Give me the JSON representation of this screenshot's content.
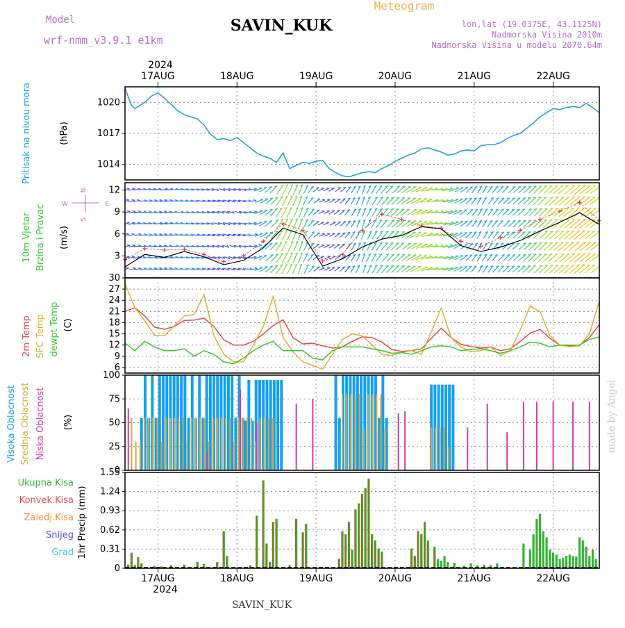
{
  "header": {
    "model_label": "Model",
    "model_value": "wrf-nmm_v3.9.1  e1km",
    "station": "SAVIN_KUK",
    "product": "Meteogram",
    "lonlat": "lon,lat (19.0375E, 43.1125N)",
    "altitude": "Nadmorska Visina 2010m",
    "model_altitude": "Nadmorska Visina u modelu 2070.64m"
  },
  "footer": {
    "station": "SAVIN_KUK",
    "credit": "made by Angel"
  },
  "axis": {
    "year": "2024",
    "dates": [
      "17AUG",
      "18AUG",
      "19AUG",
      "20AUG",
      "21AUG",
      "22AUG"
    ]
  },
  "colors": {
    "pressure": "#1ea0e6",
    "t2m": "#e64646",
    "sfc": "#e6aa32",
    "dew": "#32c832",
    "high_cloud": "#14a0f0",
    "mid_cloud": "#d2aa3c",
    "low_cloud": "#c83cb4",
    "total_precip": "#32b432",
    "conv_precip": "#e64646",
    "freezing_precip": "#f08c32",
    "snow": "#5050e6",
    "graupel": "#32c8c8",
    "title_purple": "#b46ec8",
    "title_orange": "#e6b450"
  },
  "chart_data": [
    {
      "type": "line",
      "panel": "pressure",
      "ylabel_lines": [
        "Pritisak na nivou mora",
        "(hPa)"
      ],
      "yticks": [
        1014,
        1017,
        1020
      ],
      "ylim": [
        1012.5,
        1021.5
      ],
      "xlim_hours": [
        0,
        144
      ],
      "series": [
        {
          "name": "Pritisak na nivou mora",
          "x_hours": [
            0,
            1,
            2,
            3,
            4,
            6,
            8,
            10,
            12,
            14,
            16,
            18,
            20,
            22,
            24,
            26,
            28,
            30,
            32,
            34,
            36,
            38,
            40,
            42,
            44,
            46,
            48,
            50,
            52,
            54,
            56,
            58,
            60,
            62,
            64,
            66,
            68,
            70,
            72,
            74,
            76,
            78,
            80,
            82,
            84,
            86,
            88,
            90,
            92,
            94,
            96,
            98,
            100,
            102,
            104,
            106,
            108,
            110,
            112,
            114,
            116,
            118,
            120,
            122,
            124,
            126,
            128,
            130,
            132,
            134,
            136,
            138,
            140,
            142,
            144
          ],
          "values": [
            1021.4,
            1020.5,
            1019.7,
            1019.4,
            1019.6,
            1020.0,
            1020.6,
            1020.9,
            1020.4,
            1019.8,
            1019.2,
            1018.8,
            1018.6,
            1018.4,
            1017.8,
            1016.9,
            1016.4,
            1016.5,
            1016.3,
            1016.6,
            1016.1,
            1015.6,
            1015.1,
            1014.8,
            1014.6,
            1014.2,
            1015.1,
            1013.6,
            1013.9,
            1014.2,
            1014.1,
            1014.3,
            1014.4,
            1013.6,
            1013.2,
            1012.9,
            1012.8,
            1013.0,
            1013.2,
            1013.3,
            1013.2,
            1013.6,
            1013.9,
            1014.3,
            1014.6,
            1014.9,
            1015.1,
            1015.5,
            1015.6,
            1015.4,
            1015.2,
            1014.9,
            1015.0,
            1015.3,
            1015.4,
            1015.3,
            1015.8,
            1015.9,
            1015.9,
            1016.1,
            1016.5,
            1016.8,
            1017.0,
            1017.5,
            1018.0,
            1018.6,
            1019.0,
            1019.4,
            1019.3,
            1019.5,
            1019.6,
            1019.5,
            1019.9,
            1019.5,
            1019.0
          ]
        }
      ]
    },
    {
      "type": "wind",
      "panel": "wind",
      "ylabel_lines": [
        "10m Vjetar",
        "Brzina i Pravac",
        "(m/s)"
      ],
      "compass": {
        "n": "N",
        "s": "S",
        "w": "W",
        "e": "E"
      },
      "yticks": [
        3,
        6,
        9,
        12
      ],
      "ylim": [
        0,
        13
      ],
      "xlim_hours": [
        0,
        144
      ],
      "x_hours": [
        0,
        6,
        12,
        18,
        24,
        30,
        36,
        42,
        48,
        54,
        60,
        66,
        72,
        78,
        84,
        90,
        96,
        102,
        108,
        114,
        120,
        126,
        132,
        138,
        144
      ],
      "speed": [
        1.5,
        3.2,
        2.8,
        3.6,
        2.9,
        1.8,
        2.4,
        4.1,
        6.8,
        5.9,
        1.6,
        2.6,
        4.2,
        5.3,
        5.8,
        7.0,
        6.7,
        4.4,
        3.6,
        4.2,
        5.1,
        6.4,
        7.6,
        8.9,
        7.3
      ],
      "gust": [
        2.5,
        4.0,
        3.8,
        3.9,
        3.2,
        2.2,
        3.0,
        5.0,
        7.4,
        6.5,
        2.3,
        3.2,
        6.5,
        8.7,
        8.0,
        7.1,
        6.8,
        5.0,
        4.3,
        5.5,
        6.5,
        8.0,
        9.1,
        10.3,
        7.8
      ],
      "direction_deg": [
        250,
        270,
        260,
        275,
        280,
        290,
        285,
        240,
        210,
        200,
        250,
        230,
        200,
        220,
        230,
        250,
        270,
        240,
        210,
        225,
        230,
        225,
        230,
        230,
        235
      ]
    },
    {
      "type": "line",
      "panel": "temperature",
      "ylabel_lines": [
        "2m Temp",
        "SFC Temp",
        "dewpt Temp",
        "(C)"
      ],
      "yticks": [
        6,
        9,
        12,
        15,
        18,
        21,
        24,
        27,
        30
      ],
      "ylim": [
        4.5,
        30
      ],
      "xlim_hours": [
        0,
        144
      ],
      "x_hours": [
        0,
        3,
        6,
        9,
        12,
        15,
        18,
        21,
        24,
        27,
        30,
        33,
        36,
        39,
        42,
        45,
        48,
        51,
        54,
        57,
        60,
        63,
        66,
        69,
        72,
        75,
        78,
        81,
        84,
        87,
        90,
        93,
        96,
        99,
        102,
        105,
        108,
        111,
        114,
        117,
        120,
        123,
        126,
        129,
        132,
        135,
        138,
        141,
        144
      ],
      "series": [
        {
          "name": "2m Temp",
          "values": [
            21.0,
            22.0,
            19.8,
            16.8,
            16.2,
            17.0,
            18.6,
            18.7,
            19.2,
            17.0,
            13.4,
            12.0,
            12.0,
            13.0,
            15.0,
            17.2,
            18.8,
            14.0,
            12.3,
            12.5,
            11.8,
            11.2,
            11.5,
            13.0,
            14.2,
            14.0,
            12.8,
            10.8,
            10.3,
            10.5,
            11.0,
            13.8,
            16.5,
            14.0,
            12.2,
            11.6,
            11.2,
            11.5,
            10.5,
            11.0,
            13.0,
            15.2,
            16.2,
            13.8,
            12.0,
            11.8,
            12.0,
            14.0,
            17.5
          ]
        },
        {
          "name": "SFC Temp",
          "values": [
            28.5,
            22.0,
            18.5,
            14.5,
            14.5,
            17.2,
            19.8,
            20.2,
            25.5,
            14.5,
            9.5,
            7.5,
            7.5,
            12.0,
            17.0,
            25.0,
            14.0,
            10.2,
            7.5,
            6.5,
            5.5,
            9.5,
            13.5,
            15.0,
            14.5,
            12.0,
            9.5,
            9.2,
            10.0,
            10.5,
            9.5,
            15.5,
            22.0,
            14.0,
            11.5,
            10.2,
            10.5,
            11.5,
            9.2,
            10.5,
            16.0,
            22.5,
            21.0,
            14.5,
            12.0,
            11.5,
            11.8,
            15.0,
            23.8
          ]
        },
        {
          "name": "dewpt Temp",
          "values": [
            12.5,
            10.5,
            13.0,
            11.5,
            10.5,
            10.5,
            11.0,
            9.0,
            10.5,
            9.5,
            7.5,
            7.0,
            8.5,
            10.5,
            12.0,
            13.0,
            10.5,
            10.5,
            10.5,
            8.5,
            8.0,
            10.5,
            11.5,
            11.5,
            11.5,
            11.0,
            10.5,
            9.8,
            10.0,
            9.5,
            10.5,
            11.5,
            11.8,
            11.5,
            10.5,
            10.8,
            11.0,
            10.5,
            9.8,
            10.5,
            11.5,
            12.8,
            12.5,
            11.5,
            12.0,
            12.0,
            12.0,
            13.5,
            14.2
          ]
        }
      ]
    },
    {
      "type": "bar",
      "panel": "cloud",
      "ylabel_lines": [
        "Visoka Oblacnost",
        "Srednja Oblacnost",
        "Niska Oblacnost",
        "(%)"
      ],
      "yticks": [
        0,
        25,
        50,
        75,
        100
      ],
      "ylim": [
        0,
        100
      ],
      "xlim_hours": [
        0,
        144
      ],
      "series": [
        {
          "name": "Visoka Oblacnost",
          "segments": [
            {
              "from": 5,
              "to": 36,
              "value": 100
            },
            {
              "from": 36.5,
              "to": 48,
              "value": 95
            },
            {
              "from": 64,
              "to": 80,
              "value": 100
            },
            {
              "from": 93,
              "to": 100,
              "value": 90
            }
          ]
        },
        {
          "name": "Srednja Oblacnost",
          "segments": [
            {
              "from": 2,
              "to": 46,
              "value": 55
            },
            {
              "from": 66,
              "to": 80,
              "value": 80
            },
            {
              "from": 93,
              "to": 99,
              "value": 45
            }
          ]
        },
        {
          "name": "Niska Oblacnost",
          "hours": [
            1,
            25,
            35,
            40,
            52,
            57,
            83,
            85,
            104,
            110,
            116,
            121,
            125,
            130,
            136,
            141
          ],
          "values": [
            65,
            20,
            85,
            50,
            70,
            75,
            60,
            62,
            45,
            70,
            40,
            72,
            72,
            72,
            72,
            72
          ]
        }
      ]
    },
    {
      "type": "bar",
      "panel": "precip",
      "ylabel_lines": [
        "1hr Precip (mm)"
      ],
      "legend": [
        "Ukupna Kisa",
        "Konvek.Kisa",
        "Zaledj.Kisa",
        "Snijeg",
        "Grad"
      ],
      "yticks": [
        0,
        0.31,
        0.62,
        0.93,
        1.24,
        1.55
      ],
      "ylim": [
        0,
        1.55
      ],
      "xlim_hours": [
        0,
        144
      ],
      "x_hours": [
        1,
        2,
        3,
        4,
        5,
        9,
        11,
        14,
        18,
        22,
        24,
        28,
        30,
        31,
        38,
        40,
        42,
        43,
        44,
        45,
        46,
        50,
        52,
        54,
        55,
        65,
        66,
        67,
        68,
        69,
        70,
        71,
        72,
        73,
        74,
        75,
        76,
        77,
        78,
        87,
        88,
        89,
        90,
        91,
        92,
        94,
        95,
        96,
        97,
        98,
        100,
        103,
        105,
        107,
        109,
        111,
        113,
        121,
        123,
        124,
        125,
        126,
        127,
        128,
        129,
        130,
        131,
        132,
        133,
        134,
        135,
        136,
        137,
        138,
        139,
        140,
        141,
        142,
        143
      ],
      "total": [
        0.06,
        0.25,
        0.05,
        0.18,
        0.08,
        0.04,
        0.03,
        0.05,
        0.06,
        0.1,
        0.07,
        0.1,
        0.6,
        0.2,
        0.05,
        0.85,
        1.42,
        0.4,
        0.1,
        0.75,
        0.8,
        0.05,
        0.8,
        0.58,
        0.72,
        0.15,
        0.6,
        0.55,
        0.75,
        0.3,
        0.95,
        1.05,
        1.2,
        1.3,
        1.45,
        0.55,
        0.45,
        0.32,
        0.27,
        0.32,
        0.2,
        0.6,
        0.55,
        0.75,
        0.45,
        0.35,
        0.15,
        0.12,
        0.2,
        0.1,
        0.09,
        0.04,
        0.08,
        0.05,
        0.06,
        0.05,
        0.08,
        0.4,
        0.3,
        0.55,
        0.8,
        0.88,
        0.6,
        0.5,
        0.3,
        0.25,
        0.22,
        0.15,
        0.17,
        0.2,
        0.22,
        0.2,
        0.19,
        0.5,
        0.45,
        0.35,
        0.2,
        0.3,
        0.15
      ],
      "convective": [
        0.06,
        0.25,
        0.05,
        0.18,
        0.06,
        0.03,
        0.0,
        0.05,
        0.05,
        0.08,
        0.06,
        0.08,
        0.6,
        0.2,
        0.05,
        0.85,
        1.42,
        0.4,
        0.1,
        0.75,
        0.8,
        0.05,
        0.8,
        0.58,
        0.7,
        0.15,
        0.6,
        0.55,
        0.75,
        0.3,
        0.95,
        1.05,
        1.2,
        1.3,
        1.45,
        0.55,
        0.45,
        0.3,
        0.25,
        0.3,
        0.2,
        0.6,
        0.55,
        0.75,
        0.4,
        0.3,
        0,
        0,
        0,
        0,
        0,
        0,
        0,
        0,
        0,
        0,
        0,
        0,
        0,
        0,
        0,
        0,
        0,
        0,
        0,
        0,
        0,
        0,
        0,
        0,
        0,
        0,
        0,
        0,
        0,
        0,
        0,
        0,
        0
      ]
    }
  ]
}
